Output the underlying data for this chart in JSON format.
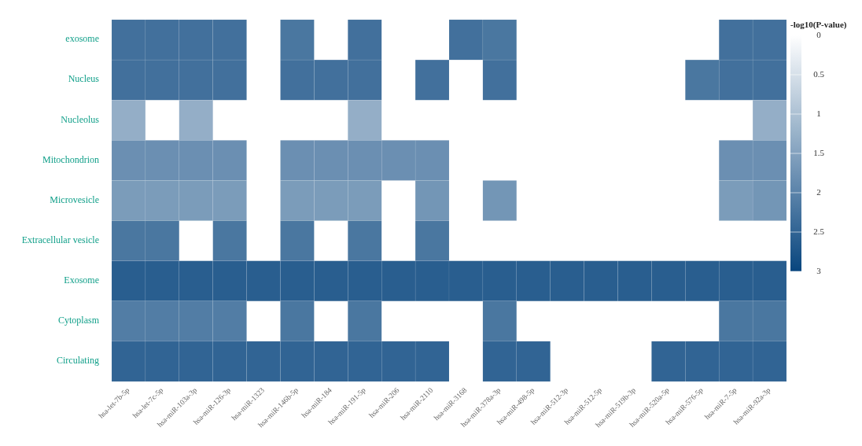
{
  "chart_data": {
    "type": "heatmap",
    "clabel": "-log10(P-value)",
    "categories": [
      "hsa-let-7b-5p",
      "hsa-let-7c-5p",
      "hsa-miR-103a-3p",
      "hsa-miR-126-3p",
      "hsa-miR-1323",
      "hsa-miR-146b-5p",
      "hsa-miR-184",
      "hsa-miR-191-5p",
      "hsa-miR-206",
      "hsa-miR-2110",
      "hsa-miR-3168",
      "hsa-miR-378a-3p",
      "hsa-miR-498-5p",
      "hsa-miR-512-3p",
      "hsa-miR-512-5p",
      "hsa-miR-519b-3p",
      "hsa-miR-520a-5p",
      "hsa-miR-576-5p",
      "hsa-miR-7-5p",
      "hsa-miR-92a-3p"
    ],
    "y_categories": [
      "exosome",
      "Nucleus",
      "Nucleolus",
      "Mitochondrion",
      "Microvesicle",
      "Extracellular vesicle",
      "Exosome",
      "Cytoplasm",
      "Circulating"
    ],
    "cells": [
      [
        2.3,
        2.3,
        2.3,
        2.3,
        null,
        2.2,
        null,
        2.3,
        null,
        null,
        2.3,
        2.2,
        null,
        null,
        null,
        null,
        null,
        null,
        2.3,
        2.3
      ],
      [
        2.3,
        2.3,
        2.3,
        2.3,
        null,
        2.3,
        2.3,
        2.3,
        null,
        2.3,
        null,
        2.3,
        null,
        null,
        null,
        null,
        null,
        2.2,
        2.3,
        2.3
      ],
      [
        1.3,
        null,
        1.3,
        null,
        null,
        null,
        null,
        1.3,
        null,
        null,
        null,
        null,
        null,
        null,
        null,
        null,
        null,
        null,
        null,
        1.3
      ],
      [
        1.8,
        1.8,
        1.8,
        1.8,
        null,
        1.8,
        1.8,
        1.8,
        1.8,
        1.8,
        null,
        null,
        null,
        null,
        null,
        null,
        null,
        null,
        1.8,
        1.8
      ],
      [
        1.6,
        1.6,
        1.6,
        1.6,
        null,
        1.6,
        1.6,
        1.6,
        null,
        1.7,
        null,
        1.7,
        null,
        null,
        null,
        null,
        null,
        null,
        1.6,
        1.7
      ],
      [
        2.2,
        2.2,
        null,
        2.2,
        null,
        2.2,
        null,
        2.2,
        null,
        2.2,
        null,
        null,
        null,
        null,
        null,
        null,
        null,
        null,
        null,
        null
      ],
      [
        2.6,
        2.6,
        2.6,
        2.6,
        2.6,
        2.6,
        2.6,
        2.6,
        2.6,
        2.6,
        2.6,
        2.6,
        2.6,
        2.6,
        2.6,
        2.6,
        2.6,
        2.6,
        2.6,
        2.6
      ],
      [
        2.1,
        2.1,
        2.1,
        2.1,
        null,
        2.2,
        null,
        2.2,
        null,
        null,
        null,
        2.2,
        null,
        null,
        null,
        null,
        null,
        null,
        2.2,
        2.2
      ],
      [
        2.5,
        2.5,
        2.5,
        2.5,
        2.5,
        2.5,
        2.5,
        2.5,
        2.5,
        2.5,
        null,
        2.5,
        2.5,
        null,
        null,
        null,
        2.5,
        2.5,
        2.5,
        2.5
      ]
    ],
    "clim": [
      0,
      3
    ],
    "cticks": [
      0,
      0.5,
      1,
      1.5,
      2,
      2.5,
      3
    ]
  }
}
